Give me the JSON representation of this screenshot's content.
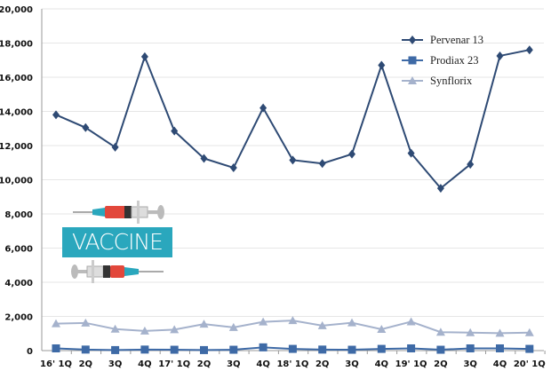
{
  "chart_data": {
    "type": "line",
    "title": "",
    "xlabel": "",
    "ylabel": "",
    "ylim": [
      0,
      20000
    ],
    "yticks": [
      "0",
      "2,000",
      "4,000",
      "6,000",
      "8,000",
      "10,000",
      "12,000",
      "14,000",
      "16,000",
      "18,000",
      "20,000"
    ],
    "grid": true,
    "legend_position": "top-right",
    "categories": [
      "16' 1Q",
      "2Q",
      "3Q",
      "4Q",
      "17' 1Q",
      "2Q",
      "3Q",
      "4Q",
      "18' 1Q",
      "2Q",
      "3Q",
      "4Q",
      "19' 1Q",
      "2Q",
      "3Q",
      "4Q",
      "20' 1Q"
    ],
    "series": [
      {
        "name": "Pervenar 13",
        "marker": "diamond",
        "color": "#2e4a74",
        "values": [
          13800,
          13050,
          11900,
          17200,
          12850,
          11250,
          10700,
          14200,
          11150,
          10950,
          11500,
          16700,
          11550,
          9500,
          10900,
          17250,
          17600
        ]
      },
      {
        "name": "Prodiax 23",
        "marker": "square",
        "color": "#3e6aa6",
        "values": [
          130,
          60,
          30,
          60,
          50,
          30,
          50,
          190,
          100,
          60,
          50,
          100,
          130,
          50,
          130,
          130,
          100
        ]
      },
      {
        "name": "Synflorix",
        "marker": "triangle",
        "color": "#a5b2cc",
        "values": [
          1580,
          1620,
          1260,
          1150,
          1230,
          1550,
          1360,
          1680,
          1760,
          1460,
          1630,
          1250,
          1690,
          1080,
          1050,
          1020,
          1050
        ]
      }
    ]
  },
  "decoration": {
    "vaccine_label": "VACCINE"
  }
}
